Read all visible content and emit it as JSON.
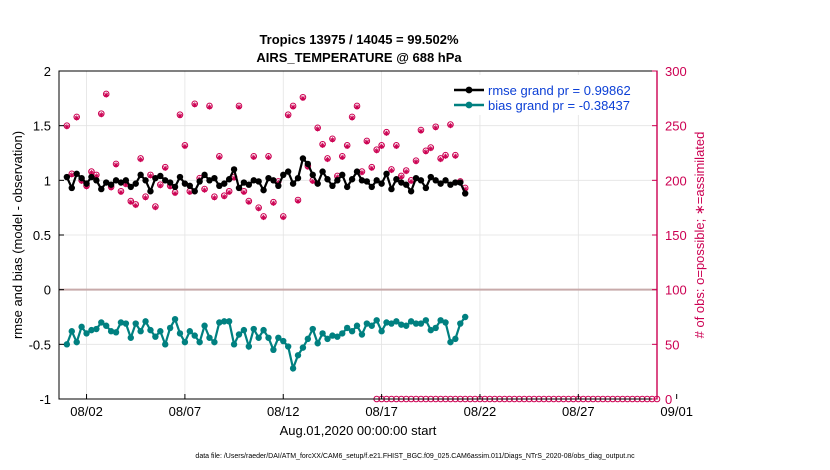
{
  "chart_data": {
    "type": "line",
    "title": "Tropics 13975 / 14045 = 99.502%",
    "subtitle": "AIRS_TEMPERATURE @ 688 hPa",
    "xlabel": "Aug.01,2020 00:00:00 start",
    "ylabel": "rmse and bias (model - observation)",
    "y2label": "# of obs: o=possible; ∗=assimilated",
    "footnote": "data file: /Users/raeder/DAI/ATM_forcXX/CAM6_setup/f.e21.FHIST_BGC.f09_025.CAM6assim.011/Diags_NTrS_2020-08/obs_diag_output.nc",
    "xlim": [
      0.6,
      31.0
    ],
    "ylim": [
      -1,
      2
    ],
    "y2lim": [
      0,
      300
    ],
    "x_ticks": [
      {
        "x": 2,
        "label": "08/02"
      },
      {
        "x": 7,
        "label": "08/07"
      },
      {
        "x": 12,
        "label": "08/12"
      },
      {
        "x": 17,
        "label": "08/17"
      },
      {
        "x": 22,
        "label": "08/22"
      },
      {
        "x": 27,
        "label": "08/27"
      },
      {
        "x": 32,
        "label": "09/01"
      }
    ],
    "y_ticks": [
      {
        "v": -1,
        "label": "-1"
      },
      {
        "v": -0.5,
        "label": "-0.5"
      },
      {
        "v": 0,
        "label": "0"
      },
      {
        "v": 0.5,
        "label": "0.5"
      },
      {
        "v": 1,
        "label": "1"
      },
      {
        "v": 1.5,
        "label": "1.5"
      },
      {
        "v": 2,
        "label": "2"
      }
    ],
    "y2_ticks": [
      {
        "v": 0,
        "label": "0"
      },
      {
        "v": 50,
        "label": "50"
      },
      {
        "v": 100,
        "label": "100"
      },
      {
        "v": 150,
        "label": "150"
      },
      {
        "v": 200,
        "label": "200"
      },
      {
        "v": 250,
        "label": "250"
      },
      {
        "v": 300,
        "label": "300"
      }
    ],
    "grid": true,
    "legend_position": "top-right",
    "colors": {
      "rmse": "#000000",
      "bias": "#008080",
      "obs": "#cc0052",
      "zero_line": "#c8aaaa",
      "grid": "#e3e3e3"
    },
    "obs_zero_start_day": 16.75,
    "obs_zero_end_day": 32,
    "obs_zero_step": 0.25,
    "series": [
      {
        "name": "rmse grand pr = 0.99862",
        "legend": "rmse grand pr = 0.99862",
        "axis": "left",
        "start_day": 1.0,
        "step": 0.25,
        "values": [
          1.03,
          0.93,
          1.06,
          1.02,
          0.97,
          1.03,
          1.0,
          0.92,
          0.98,
          0.96,
          1.0,
          0.98,
          1.0,
          0.94,
          0.97,
          1.05,
          1.0,
          0.9,
          1.02,
          1.04,
          1.0,
          0.98,
          0.94,
          1.03,
          0.97,
          0.95,
          0.9,
          0.99,
          1.05,
          1.0,
          1.02,
          0.95,
          0.97,
          1.01,
          1.1,
          0.93,
          0.98,
          0.96,
          1.0,
          0.99,
          0.91,
          1.02,
          1.0,
          0.95,
          1.05,
          1.08,
          0.97,
          1.02,
          1.2,
          1.15,
          1.05,
          0.97,
          1.08,
          1.01,
          0.95,
          1.0,
          1.05,
          0.94,
          1.01,
          1.08,
          1.0,
          0.99,
          0.94,
          1.0,
          0.97,
          1.06,
          0.92,
          1.01,
          0.98,
          0.96,
          0.9,
          1.02,
          1.0,
          0.93,
          1.03,
          1.0,
          0.97,
          1.0,
          0.96,
          0.98,
          0.98,
          0.88
        ]
      },
      {
        "name": "bias grand pr = -0.38437",
        "legend": "bias grand pr = -0.38437",
        "axis": "left",
        "start_day": 1.0,
        "step": 0.25,
        "values": [
          -0.5,
          -0.38,
          -0.48,
          -0.34,
          -0.4,
          -0.37,
          -0.36,
          -0.3,
          -0.33,
          -0.38,
          -0.39,
          -0.3,
          -0.31,
          -0.44,
          -0.31,
          -0.38,
          -0.29,
          -0.37,
          -0.43,
          -0.38,
          -0.5,
          -0.35,
          -0.27,
          -0.4,
          -0.48,
          -0.38,
          -0.42,
          -0.48,
          -0.33,
          -0.44,
          -0.48,
          -0.3,
          -0.29,
          -0.29,
          -0.5,
          -0.41,
          -0.37,
          -0.52,
          -0.36,
          -0.44,
          -0.37,
          -0.44,
          -0.55,
          -0.44,
          -0.47,
          -0.52,
          -0.72,
          -0.6,
          -0.53,
          -0.45,
          -0.36,
          -0.49,
          -0.4,
          -0.45,
          -0.42,
          -0.43,
          -0.4,
          -0.35,
          -0.38,
          -0.33,
          -0.41,
          -0.31,
          -0.33,
          -0.28,
          -0.38,
          -0.3,
          -0.31,
          -0.29,
          -0.32,
          -0.33,
          -0.29,
          -0.31,
          -0.31,
          -0.28,
          -0.37,
          -0.35,
          -0.28,
          -0.3,
          -0.48,
          -0.45,
          -0.31,
          -0.25
        ]
      },
      {
        "name": "possible",
        "axis": "right",
        "start_day": 1.0,
        "step": 0.25,
        "values": [
          250,
          206,
          258,
          200,
          195,
          208,
          205,
          261,
          279,
          194,
          215,
          190,
          197,
          181,
          178,
          220,
          185,
          205,
          176,
          196,
          212,
          195,
          189,
          260,
          232,
          190,
          270,
          202,
          192,
          268,
          185,
          222,
          186,
          190,
          203,
          268,
          190,
          181,
          222,
          175,
          167,
          222,
          180,
          199,
          167,
          260,
          268,
          182,
          276,
          213,
          200,
          248,
          233,
          220,
          238,
          204,
          222,
          232,
          258,
          268,
          208,
          236,
          212,
          228,
          232,
          244,
          210,
          232,
          204,
          209,
          200,
          218,
          246,
          227,
          230,
          249,
          220,
          223,
          251,
          223,
          199,
          193
        ]
      },
      {
        "name": "assimilated",
        "axis": "right",
        "start_day": 1.0,
        "step": 0.25,
        "values": [
          249,
          205,
          257,
          199,
          194,
          207,
          204,
          260,
          278,
          193,
          214,
          189,
          196,
          180,
          177,
          219,
          184,
          204,
          175,
          195,
          211,
          194,
          188,
          259,
          231,
          189,
          269,
          201,
          191,
          267,
          184,
          221,
          185,
          189,
          202,
          267,
          189,
          180,
          221,
          174,
          166,
          221,
          179,
          198,
          166,
          259,
          267,
          181,
          275,
          212,
          199,
          247,
          232,
          219,
          237,
          203,
          221,
          231,
          257,
          267,
          207,
          235,
          211,
          227,
          231,
          243,
          209,
          231,
          203,
          208,
          199,
          217,
          245,
          226,
          229,
          248,
          219,
          222,
          250,
          222,
          198,
          192
        ]
      }
    ]
  }
}
